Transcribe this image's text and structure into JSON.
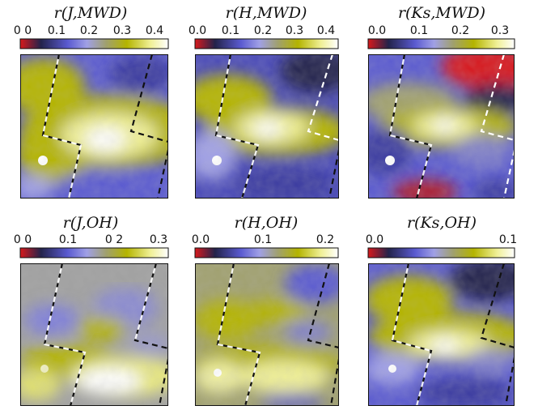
{
  "figure": {
    "description_domain": "Chart",
    "colormap": [
      "#d7191c",
      "#23234b",
      "#5a5ad0",
      "#a0a0e6",
      "#a0a06e",
      "#b4b400",
      "#f0f096",
      "#ffffff"
    ],
    "overlay_line_colors": [
      "#111111",
      "#ffffff"
    ]
  },
  "chart_data": [
    {
      "type": "heatmap",
      "title": "r(J,MWD)",
      "colorbar": {
        "min": 0.0,
        "max": 0.45,
        "tick_labels": [
          "0 0",
          "0.1",
          "0.2",
          "0.3",
          "0.4"
        ],
        "tick_values": [
          0.0,
          0.1,
          0.2,
          0.3,
          0.4
        ]
      },
      "xlabel": "",
      "ylabel": ""
    },
    {
      "type": "heatmap",
      "title": "r(H,MWD)",
      "colorbar": {
        "min": 0.0,
        "max": 0.45,
        "tick_labels": [
          "0.0",
          "0.1",
          "0.2",
          "0.3",
          "0.4"
        ],
        "tick_values": [
          0.0,
          0.1,
          0.2,
          0.3,
          0.4
        ]
      },
      "xlabel": "",
      "ylabel": ""
    },
    {
      "type": "heatmap",
      "title": "r(Ks,MWD)",
      "colorbar": {
        "min": 0.0,
        "max": 0.36,
        "tick_labels": [
          "0.0",
          "0.1",
          "0.2",
          "0.3"
        ],
        "tick_values": [
          0.0,
          0.1,
          0.2,
          0.3
        ]
      },
      "xlabel": "",
      "ylabel": ""
    },
    {
      "type": "heatmap",
      "title": "r(J,OH)",
      "colorbar": {
        "min": 0.0,
        "max": 0.32,
        "tick_labels": [
          "0 0",
          "0.1",
          "0 2",
          "0.3"
        ],
        "tick_values": [
          0.0,
          0.1,
          0.2,
          0.3
        ]
      },
      "xlabel": "",
      "ylabel": ""
    },
    {
      "type": "heatmap",
      "title": "r(H,OH)",
      "colorbar": {
        "min": 0.0,
        "max": 0.23,
        "tick_labels": [
          "0.0",
          "0.1",
          "0.2"
        ],
        "tick_values": [
          0.0,
          0.1,
          0.2
        ]
      },
      "xlabel": "",
      "ylabel": ""
    },
    {
      "type": "heatmap",
      "title": "r(Ks,OH)",
      "colorbar": {
        "min": 0.0,
        "max": 0.11,
        "tick_labels": [
          "0.0",
          "0.1"
        ],
        "tick_values": [
          0.0,
          0.1
        ]
      },
      "xlabel": "",
      "ylabel": ""
    }
  ]
}
